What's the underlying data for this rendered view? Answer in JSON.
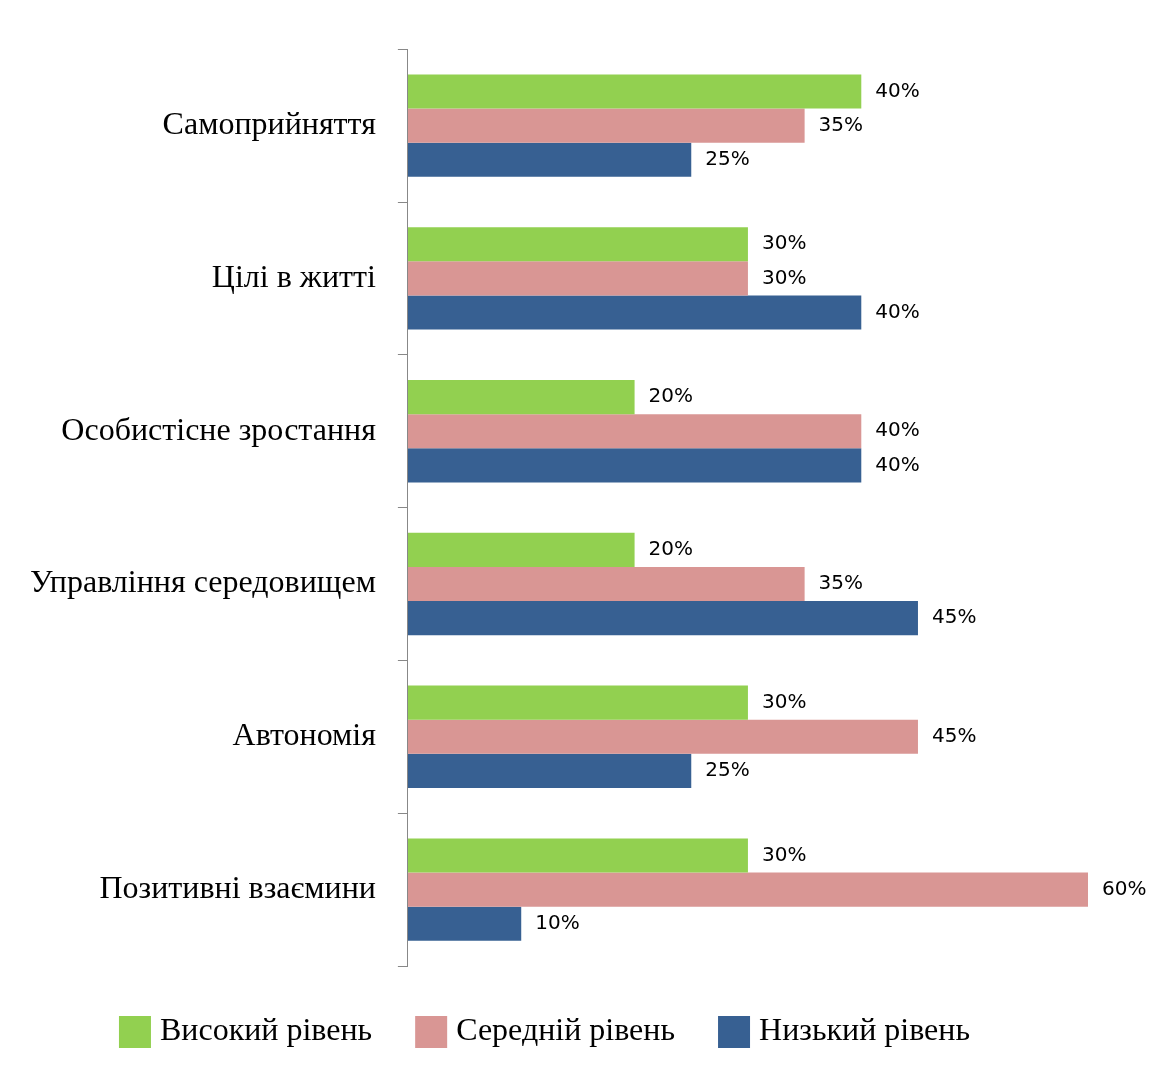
{
  "chart_data": {
    "type": "bar",
    "orientation": "horizontal",
    "categories": [
      "Самоприйняття",
      "Цілі в житті",
      "Особистісне зростання",
      "Управління середовищем",
      "Автономія",
      "Позитивні взаємини"
    ],
    "series": [
      {
        "name": "Високий рівень",
        "color": "#92d050",
        "values": [
          40,
          30,
          20,
          20,
          30,
          30
        ],
        "value_labels": [
          "40%",
          "30%",
          "20%",
          "20%",
          "30%",
          "30%"
        ]
      },
      {
        "name": "Середній рівень",
        "color": "#d99694",
        "values": [
          35,
          30,
          40,
          35,
          45,
          60
        ],
        "value_labels": [
          "35%",
          "30%",
          "40%",
          "35%",
          "45%",
          "60%"
        ]
      },
      {
        "name": "Низький рівень",
        "color": "#376092",
        "values": [
          25,
          40,
          40,
          45,
          25,
          10
        ],
        "value_labels": [
          "25%",
          "40%",
          "40%",
          "45%",
          "25%",
          "10%"
        ]
      }
    ],
    "legend": "bottom",
    "tick_labels": "y"
  }
}
